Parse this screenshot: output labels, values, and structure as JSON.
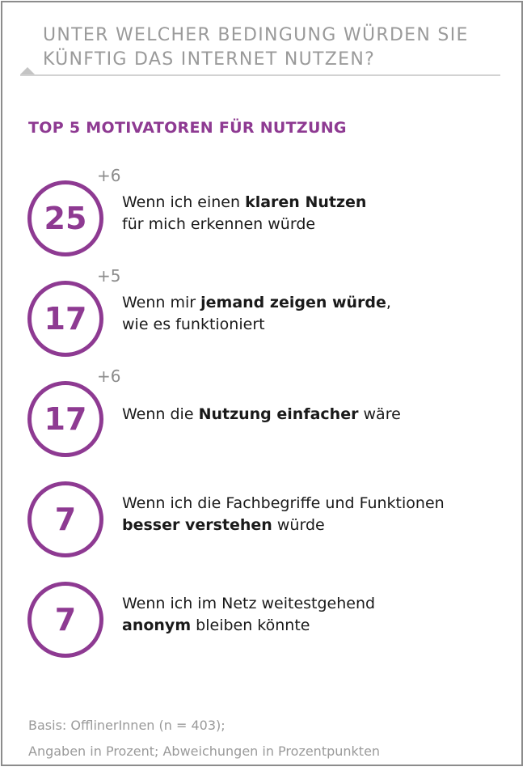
{
  "header": {
    "question": "UNTER WELCHER BEDINGUNG WÜRDEN SIE KÜNFTIG DAS INTERNET NUTZEN?",
    "subtitle": "TOP 5 MOTIVATOREN FÜR NUTZUNG"
  },
  "colors": {
    "accent": "#8e3a92",
    "muted": "#9a9a9a",
    "text": "#1a1a1a"
  },
  "chart_data": {
    "type": "table",
    "unit": "Prozent",
    "rows": [
      {
        "value": 25,
        "value_label": "25",
        "change": "+6",
        "line1": [
          {
            "t": "Wenn ich einen "
          },
          {
            "t": "klaren Nutzen",
            "b": true
          }
        ],
        "line2": [
          {
            "t": "für mich erkennen würde"
          }
        ]
      },
      {
        "value": 17,
        "value_label": "17",
        "change": "+5",
        "line1": [
          {
            "t": "Wenn mir "
          },
          {
            "t": "jemand zeigen würde",
            "b": true
          },
          {
            "t": ","
          }
        ],
        "line2": [
          {
            "t": "wie es funktioniert"
          }
        ]
      },
      {
        "value": 17,
        "value_label": "17",
        "change": "+6",
        "line1": [
          {
            "t": "Wenn die "
          },
          {
            "t": "Nutzung einfacher",
            "b": true
          },
          {
            "t": " wäre"
          }
        ],
        "line2": []
      },
      {
        "value": 7,
        "value_label": "7",
        "change": "",
        "line1": [
          {
            "t": "Wenn ich die Fachbegriffe und Funktionen"
          }
        ],
        "line2": [
          {
            "t": "besser verstehen",
            "b": true
          },
          {
            "t": " würde"
          }
        ]
      },
      {
        "value": 7,
        "value_label": "7",
        "change": "",
        "line1": [
          {
            "t": "Wenn ich im Netz weitestgehend"
          }
        ],
        "line2": [
          {
            "t": "anonym",
            "b": true
          },
          {
            "t": " bleiben könnte"
          }
        ]
      }
    ]
  },
  "footer": {
    "basis": "Basis: OfflinerInnen (n = 403);",
    "note": "Angaben in Prozent; Abweichungen in Prozentpunkten"
  }
}
